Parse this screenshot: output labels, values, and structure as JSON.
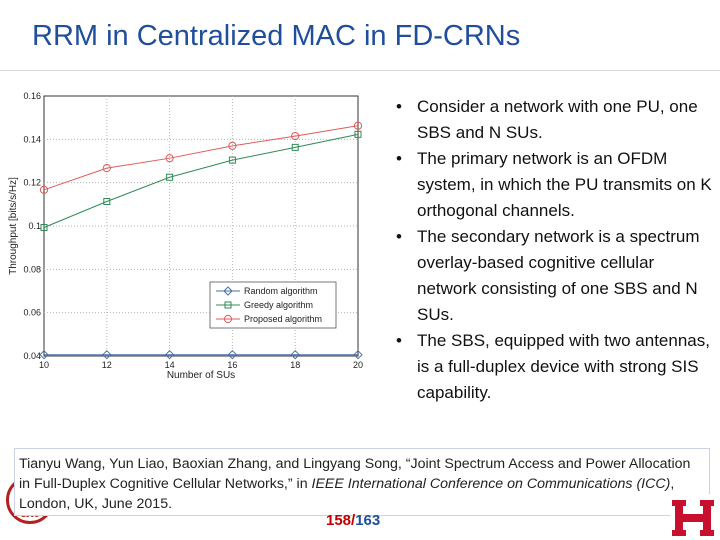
{
  "slide": {
    "title": "RRM in Centralized MAC in FD-CRNs",
    "bullets": [
      "Consider a network with one PU, one SBS and N SUs.",
      "The primary network is an OFDM system, in which the PU transmits on K orthogonal channels.",
      "The secondary network is a spectrum overlay-based cognitive cellular network consisting of one SBS and N SUs.",
      "The SBS, equipped with two antennas, is a full-duplex device with strong SIS capability."
    ],
    "citation": {
      "authors": "Tianyu Wang, Yun Liao, Baoxian Zhang, and Lingyang Song, “Joint Spectrum Access and Power Allocation in Full-Duplex Cognitive Cellular Networks,” in ",
      "venue": "IEEE International Conference on Communications (ICC)",
      "tail": ", London, UK, June 2015."
    },
    "page": {
      "current": "158",
      "separator": "/",
      "total": "163"
    },
    "seal_text": "1905",
    "colors": {
      "title": "#1f4e9c",
      "page_current": "#c00000",
      "logo_red": "#c8102e"
    }
  },
  "chart_data": {
    "type": "line",
    "xlabel": "Number of SUs",
    "ylabel": "Throughput [bits/s/Hz]",
    "x": [
      10,
      12,
      14,
      16,
      18,
      20
    ],
    "xlim": [
      10,
      20
    ],
    "ylim": [
      0.04,
      0.16
    ],
    "x_ticks": [
      "10",
      "12",
      "14",
      "16",
      "18",
      "20"
    ],
    "y_ticks": [
      "0.04",
      "0.06",
      "0.08",
      "0.1",
      "0.12",
      "0.14",
      "0.16"
    ],
    "y_tick_values": [
      0.04,
      0.06,
      0.08,
      0.1,
      0.12,
      0.14,
      0.16
    ],
    "grid": true,
    "legend_position": "bottom-right",
    "series": [
      {
        "name": "Random algorithm",
        "marker": "diamond",
        "color": "#4a6fa5",
        "values": [
          0.0406,
          0.0406,
          0.0406,
          0.0406,
          0.0406,
          0.0406
        ]
      },
      {
        "name": "Greedy algorithm",
        "marker": "square",
        "color": "#2e8b57",
        "values": [
          0.0993,
          0.1113,
          0.1225,
          0.1304,
          0.1363,
          0.1423
        ]
      },
      {
        "name": "Proposed algorithm",
        "marker": "circle",
        "color": "#e05a5a",
        "values": [
          0.1167,
          0.1267,
          0.1313,
          0.137,
          0.1415,
          0.1463
        ]
      }
    ]
  }
}
